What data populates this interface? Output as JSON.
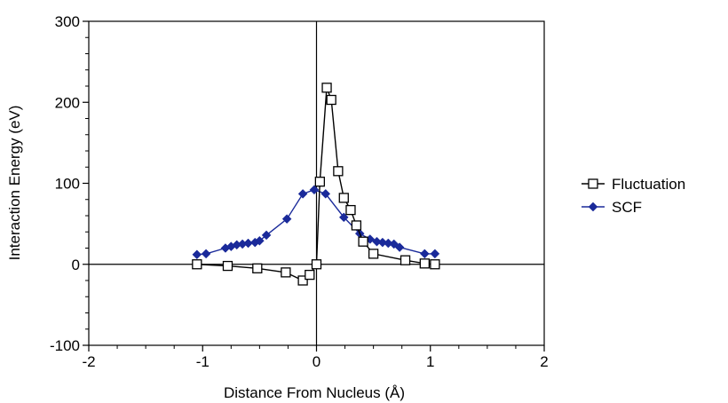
{
  "chart_data": {
    "type": "scatter",
    "title": "",
    "xlabel": "Distance From Nucleus (Å)",
    "ylabel": "Interaction Energy (eV)",
    "xlim": [
      -2,
      2
    ],
    "ylim": [
      -100,
      300
    ],
    "xticks": [
      -2,
      -1,
      0,
      1,
      2
    ],
    "yticks": [
      -100,
      0,
      100,
      200,
      300
    ],
    "xtick_labels": [
      "-2",
      "-1",
      "0",
      "1",
      "2"
    ],
    "ytick_labels": [
      "-100",
      "0",
      "100",
      "200",
      "300"
    ],
    "grid": false,
    "legend_position": "right",
    "series": [
      {
        "name": "Fluctuation",
        "marker": "open-square",
        "color": "#000000",
        "x": [
          -1.05,
          -0.78,
          -0.52,
          -0.27,
          -0.12,
          -0.06,
          0.0,
          0.03,
          0.09,
          0.13,
          0.19,
          0.24,
          0.3,
          0.35,
          0.41,
          0.5,
          0.78,
          0.95,
          1.04
        ],
        "y": [
          0,
          -2,
          -5,
          -10,
          -20,
          -13,
          0,
          102,
          218,
          203,
          115,
          82,
          67,
          48,
          28,
          13,
          5,
          1,
          0
        ]
      },
      {
        "name": "SCF",
        "marker": "filled-diamond",
        "color": "#1a2a9a",
        "x": [
          -1.05,
          -0.97,
          -0.8,
          -0.75,
          -0.7,
          -0.65,
          -0.6,
          -0.54,
          -0.5,
          -0.44,
          -0.26,
          -0.12,
          -0.02,
          0.08,
          0.24,
          0.38,
          0.47,
          0.53,
          0.58,
          0.63,
          0.68,
          0.73,
          0.95,
          1.04
        ],
        "y": [
          12,
          13,
          20,
          22,
          24,
          25,
          26,
          27,
          29,
          36,
          56,
          87,
          92,
          87,
          58,
          38,
          31,
          28,
          27,
          26,
          25,
          21,
          13,
          13
        ]
      }
    ]
  }
}
